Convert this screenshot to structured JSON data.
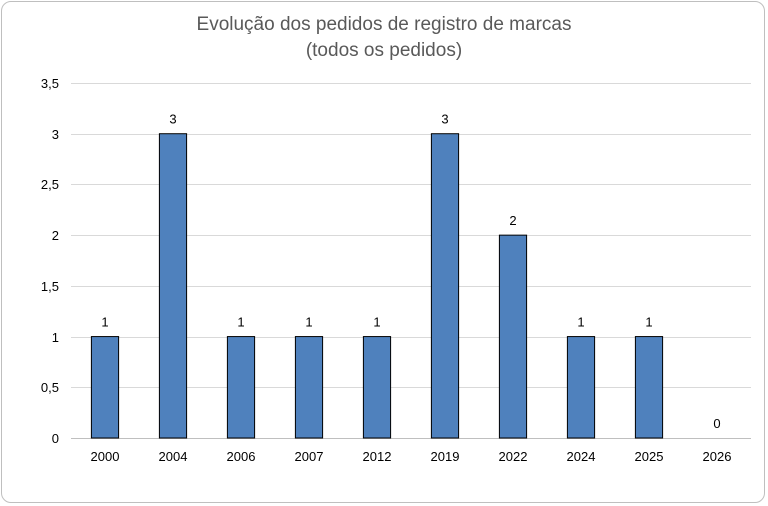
{
  "chart_data": {
    "type": "bar",
    "title_line1": "Evolução dos pedidos de registro de marcas",
    "title_line2": "(todos os pedidos)",
    "xlabel": "",
    "ylabel": "",
    "categories": [
      "2000",
      "2004",
      "2006",
      "2007",
      "2012",
      "2019",
      "2022",
      "2024",
      "2025",
      "2026"
    ],
    "values": [
      1,
      3,
      1,
      1,
      1,
      3,
      2,
      1,
      1,
      0
    ],
    "data_labels": [
      "1",
      "3",
      "1",
      "1",
      "1",
      "3",
      "2",
      "1",
      "1",
      "0"
    ],
    "ylim": [
      0,
      3.5
    ],
    "yticks": [
      0,
      0.5,
      1,
      1.5,
      2,
      2.5,
      3,
      3.5
    ],
    "ytick_labels": [
      "0",
      "0,5",
      "1",
      "1,5",
      "2",
      "2,5",
      "3",
      "3,5"
    ],
    "grid": true,
    "legend": "none",
    "colors": {
      "bar": "#4f81bd",
      "bar_edge": "#000000",
      "grid": "#d9d9d9",
      "title": "#595959"
    }
  }
}
